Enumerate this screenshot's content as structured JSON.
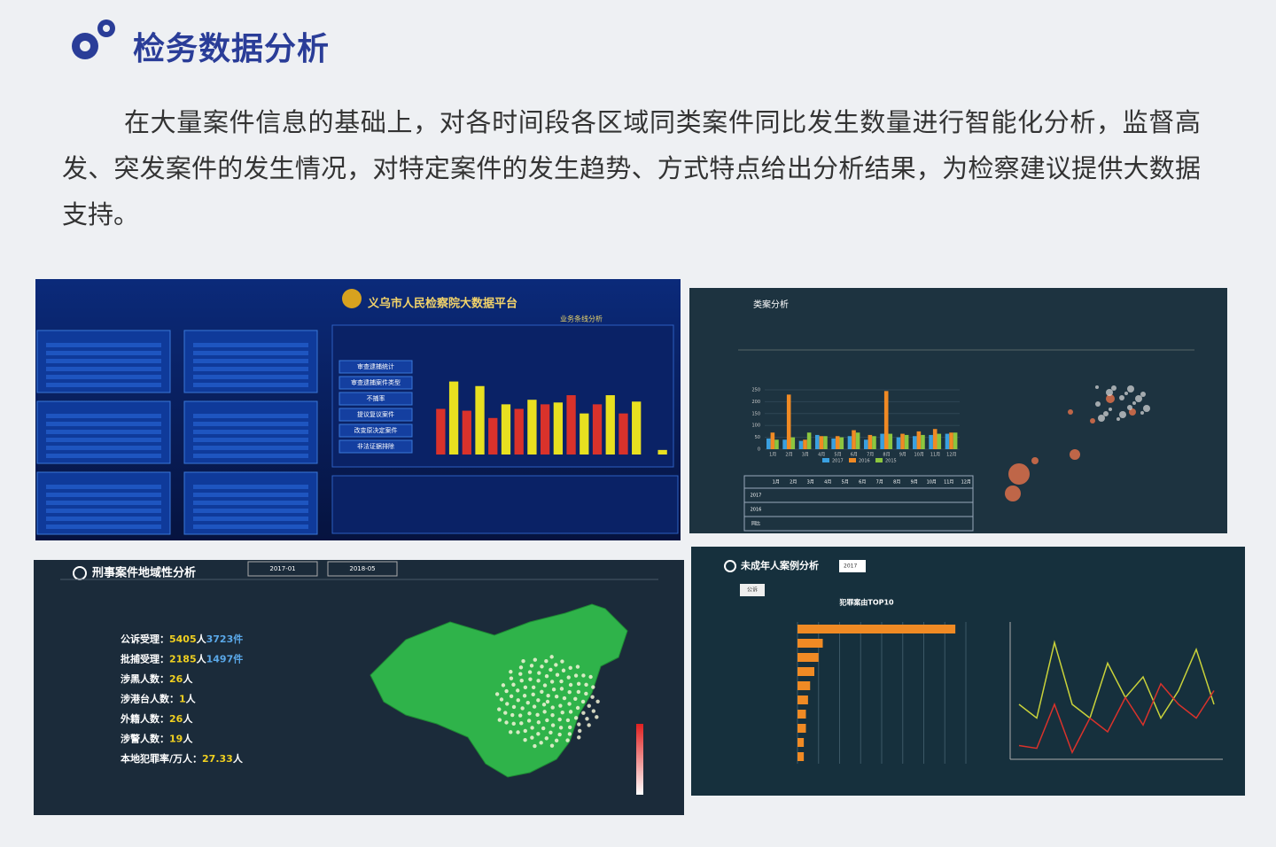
{
  "header": {
    "title": "检务数据分析"
  },
  "paragraph": "在大量案件信息的基础上，对各时间段各区域同类案件同比发生数量进行智能化分析，监督高发、突发案件的发生情况，对特定案件的发生趋势、方式特点给出分析结果，为检察建议提供大数据支持。",
  "panels": [
    {
      "title": "义乌市人民检察院大数据平台",
      "subtitle": "业务条线分析",
      "menu": [
        "审查逮捕统计",
        "审查逮捕案件类型",
        "不捕率",
        "提议复议案件",
        "改变原决定案件",
        "非法证据排除"
      ],
      "chart": {
        "type": "bar",
        "ylim": [
          0,
          100
        ],
        "values": [
          50,
          80,
          48,
          75,
          40,
          55,
          50,
          60,
          55,
          57,
          65,
          45,
          55,
          65,
          45,
          58,
          0,
          5
        ],
        "colors": [
          "#d9322b",
          "#e8e020",
          "#d9322b",
          "#e8e020",
          "#d9322b",
          "#e8e020",
          "#d9322b",
          "#e8e020",
          "#d9322b",
          "#e8e020",
          "#d9322b",
          "#e8e020",
          "#d9322b",
          "#e8e020",
          "#d9322b",
          "#e8e020",
          "#d9322b",
          "#e8e020"
        ]
      }
    },
    {
      "title": "类案分析",
      "chart": {
        "type": "bar",
        "categories": [
          "1月",
          "2月",
          "3月",
          "4月",
          "5月",
          "6月",
          "7月",
          "8月",
          "9月",
          "10月",
          "11月",
          "12月"
        ],
        "ylim": [
          0,
          250
        ],
        "yticks": [
          0,
          50,
          100,
          150,
          200,
          250
        ],
        "series": [
          {
            "name": "2017",
            "color": "#3aa0e0",
            "values": [
              45,
              40,
              35,
              60,
              45,
              55,
              40,
              65,
              50,
              55,
              60,
              65
            ]
          },
          {
            "name": "2016",
            "color": "#f08a24",
            "values": [
              70,
              230,
              40,
              55,
              55,
              80,
              60,
              245,
              65,
              75,
              85,
              70
            ]
          },
          {
            "name": "2015",
            "color": "#8cc63f",
            "values": [
              40,
              50,
              70,
              55,
              50,
              70,
              55,
              65,
              60,
              60,
              65,
              70
            ]
          }
        ]
      },
      "table": {
        "rows": [
          "2017",
          "2016",
          "同比"
        ]
      }
    },
    {
      "title": "刑事案件地域性分析",
      "dates": [
        "2017-01",
        "2018-05"
      ],
      "stats": [
        {
          "label": "公诉受理：",
          "value": "5405",
          "unit": "人",
          "value2": "3723",
          "unit2": "件"
        },
        {
          "label": "批捕受理：",
          "value": "2185",
          "unit": "人",
          "value2": "1497",
          "unit2": "件"
        },
        {
          "label": "涉黑人数：",
          "value": "26",
          "unit": "人"
        },
        {
          "label": "涉港台人数：",
          "value": "1",
          "unit": "人"
        },
        {
          "label": "外籍人数：",
          "value": "26",
          "unit": "人"
        },
        {
          "label": "涉警人数：",
          "value": "19",
          "unit": "人"
        },
        {
          "label": "本地犯罪率/万人：",
          "value": "27.33",
          "unit": "人"
        }
      ]
    },
    {
      "title": "未成年人案例分析",
      "select": "2017",
      "tabs": [
        "公诉"
      ],
      "bar_chart": {
        "type": "bar",
        "title": "犯罪案由TOP10",
        "xlim": [
          0,
          80
        ],
        "values": [
          75,
          12,
          10,
          8,
          6,
          5,
          4,
          4,
          3,
          3
        ],
        "color": "#f08a24"
      },
      "line_chart": {
        "type": "line",
        "ylim": [
          0,
          100
        ],
        "series": [
          {
            "color": "#c9d23a",
            "values": [
              40,
              30,
              85,
              40,
              30,
              70,
              45,
              60,
              30,
              50,
              80,
              40
            ]
          },
          {
            "color": "#d9322b",
            "values": [
              10,
              8,
              40,
              5,
              30,
              20,
              45,
              25,
              55,
              40,
              30,
              50
            ]
          }
        ]
      }
    }
  ]
}
